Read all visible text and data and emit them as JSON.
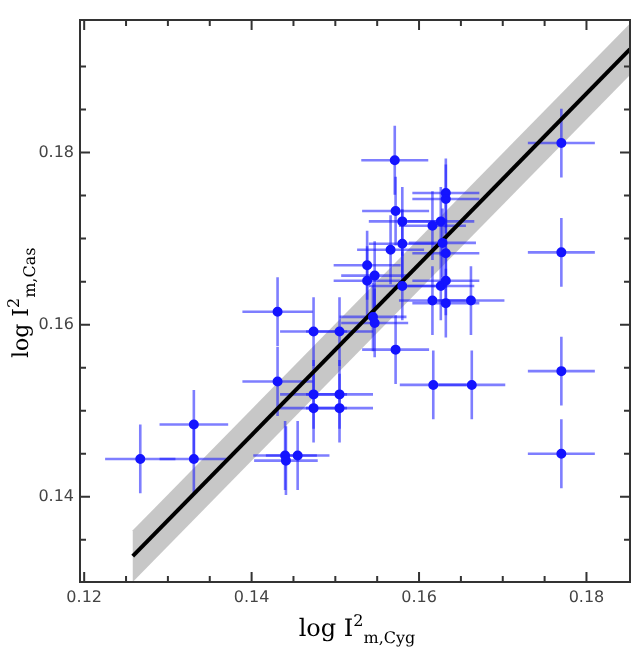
{
  "chart_data": {
    "type": "scatter",
    "xlabel": "log I$^{2}$$_{m,Cyg}$",
    "ylabel": "log I$^{2}$$_{m,Cas}$",
    "xlim": [
      0.1195,
      0.1852
    ],
    "ylim": [
      0.1301,
      0.1954
    ],
    "xticks": [
      0.12,
      {
        "value": 0.125,
        "label": null
      },
      {
        "value": 0.13,
        "label": null
      },
      {
        "value": 0.135,
        "label": null
      },
      0.14,
      {
        "value": 0.145,
        "label": null
      },
      {
        "value": 0.15,
        "label": null
      },
      {
        "value": 0.155,
        "label": null
      },
      0.16,
      {
        "value": 0.165,
        "label": null
      },
      {
        "value": 0.17,
        "label": null
      },
      {
        "value": 0.175,
        "label": null
      },
      0.18
    ],
    "yticks": [
      {
        "value": 0.135,
        "label": null
      },
      0.14,
      {
        "value": 0.145,
        "label": null
      },
      {
        "value": 0.15,
        "label": null
      },
      {
        "value": 0.155,
        "label": null
      },
      0.16,
      {
        "value": 0.165,
        "label": null
      },
      {
        "value": 0.17,
        "label": null
      },
      {
        "value": 0.175,
        "label": null
      },
      0.18,
      {
        "value": 0.185,
        "label": null
      },
      {
        "value": 0.19,
        "label": null
      }
    ],
    "grid": false,
    "legend": false,
    "marker": "circle",
    "series": [
      {
        "type": "line",
        "color": "#000000",
        "marker": "none",
        "x": [
          0.1258,
          0.1852
        ],
        "values": [
          0.1331,
          0.192
        ],
        "lower": [
          0.1301,
          0.189
        ],
        "upper": [
          0.1361,
          0.195
        ]
      },
      {
        "color": "#1414ff",
        "x": [
          0.1267,
          0.1331,
          0.1331,
          0.144,
          0.1441,
          0.1455,
          0.1431,
          0.1431,
          0.1474,
          0.1505,
          0.1474,
          0.1505,
          0.1474,
          0.1505,
          0.1545,
          0.1538,
          0.1547,
          0.1538,
          0.1572,
          0.158,
          0.1632,
          0.1632,
          0.1626,
          0.1616,
          0.1566,
          0.158,
          0.1628,
          0.1632,
          0.158,
          0.1626,
          0.1632,
          0.1616,
          0.1632,
          0.1662,
          0.1547,
          0.1572,
          0.1617,
          0.1663,
          0.1571,
          0.177,
          0.177,
          0.177,
          0.177
        ],
        "values": [
          0.1444,
          0.1484,
          0.1444,
          0.1448,
          0.1442,
          0.1448,
          0.1534,
          0.1615,
          0.1592,
          0.1592,
          0.1519,
          0.1519,
          0.1503,
          0.1503,
          0.1609,
          0.1669,
          0.1657,
          0.1651,
          0.1732,
          0.172,
          0.1753,
          0.1746,
          0.172,
          0.1715,
          0.1687,
          0.1694,
          0.1695,
          0.1683,
          0.1645,
          0.1645,
          0.1651,
          0.1628,
          0.1625,
          0.1628,
          0.1602,
          0.1571,
          0.153,
          0.153,
          0.1791,
          0.1811,
          0.1684,
          0.1546,
          0.145
        ],
        "errors": [
          0.004,
          0.004,
          0.004,
          0.004,
          0.004,
          0.004,
          0.004,
          0.004,
          0.004,
          0.004,
          0.004,
          0.004,
          0.004,
          0.004,
          0.004,
          0.004,
          0.004,
          0.004,
          0.004,
          0.004,
          0.004,
          0.004,
          0.004,
          0.004,
          0.004,
          0.004,
          0.004,
          0.004,
          0.004,
          0.004,
          0.004,
          0.004,
          0.004,
          0.004,
          0.004,
          0.004,
          0.004,
          0.004,
          0.004,
          0.004,
          0.004,
          0.004,
          0.004
        ],
        "xerrors": [
          0.0042,
          0.0041,
          0.0041,
          0.0038,
          0.0038,
          0.0038,
          0.0042,
          0.0042,
          0.004,
          0.004,
          0.004,
          0.004,
          0.004,
          0.004,
          0.004,
          0.004,
          0.004,
          0.004,
          0.004,
          0.004,
          0.004,
          0.004,
          0.004,
          0.004,
          0.004,
          0.004,
          0.004,
          0.004,
          0.004,
          0.004,
          0.004,
          0.004,
          0.004,
          0.004,
          0.004,
          0.004,
          0.004,
          0.004,
          0.004,
          0.004,
          0.004,
          0.004,
          0.004
        ]
      }
    ]
  }
}
